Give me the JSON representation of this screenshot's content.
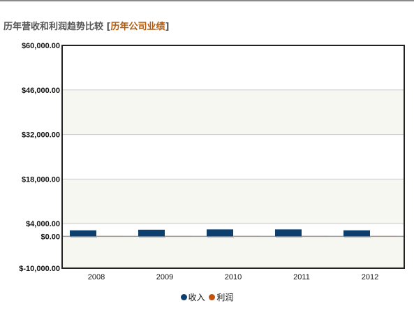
{
  "header": {
    "title": "历年营收和利润趋势比较",
    "bracket_open": "[",
    "link": "历年公司业绩",
    "bracket_close": "]"
  },
  "colors": {
    "revenue": "#0d3f6e",
    "profit": "#c0510e",
    "band": "#f7f7f2",
    "grid": "#c8c8c8",
    "axis": "#222222"
  },
  "chart_data": {
    "type": "bar",
    "title": "",
    "xlabel": "",
    "ylabel": "",
    "categories": [
      "2008",
      "2009",
      "2010",
      "2011",
      "2012"
    ],
    "y_ticks": [
      -10000,
      0,
      4000,
      18000,
      32000,
      46000,
      60000
    ],
    "y_tick_labels": [
      "$-10,000.00",
      "$0.00",
      "$4,000.00",
      "$18,000.00",
      "$32,000.00",
      "$46,000.00",
      "$60,000.00"
    ],
    "ylim": [
      -10000,
      60000
    ],
    "grid": true,
    "legend_position": "bottom",
    "series": [
      {
        "name": "收入",
        "color": "#0d3f6e",
        "values": [
          1900,
          2100,
          2200,
          2200,
          1900
        ]
      },
      {
        "name": "利润",
        "color": "#c0510e",
        "values": [
          150,
          180,
          200,
          170,
          120
        ]
      }
    ]
  }
}
